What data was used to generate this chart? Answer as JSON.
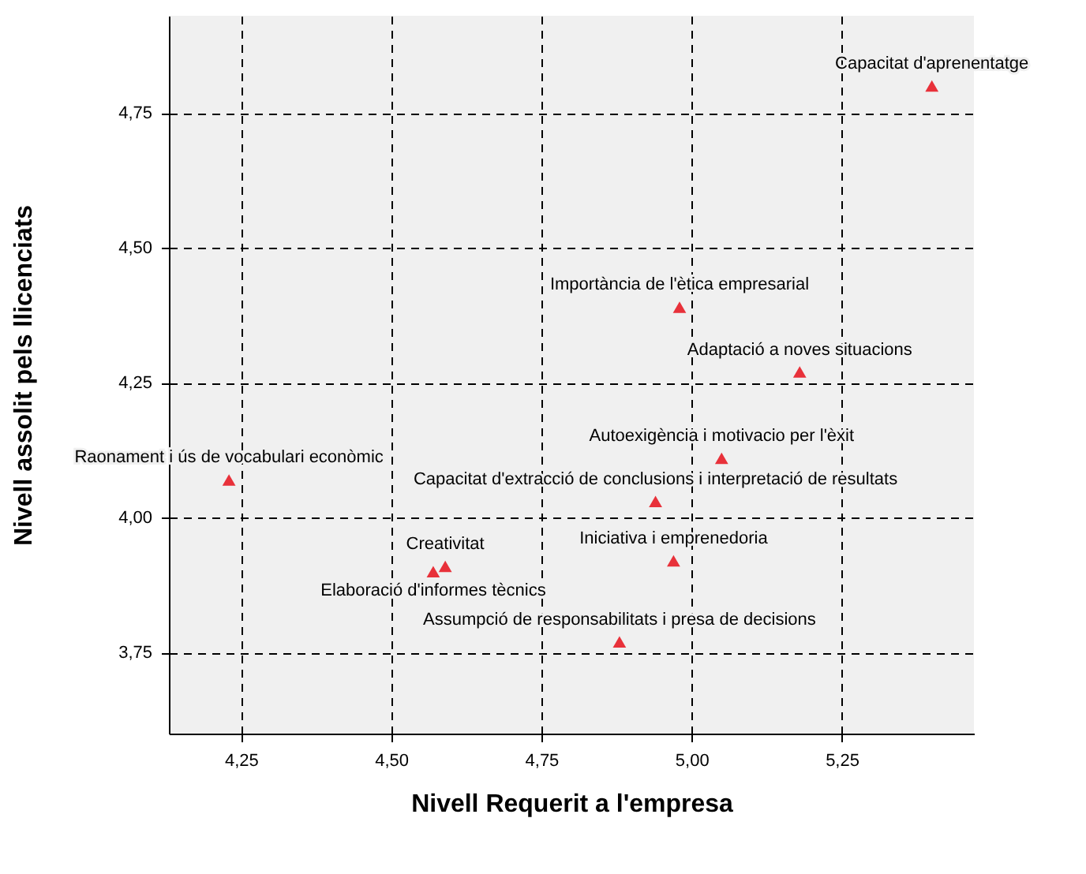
{
  "chart_data": {
    "type": "scatter",
    "xlabel": "Nivell Requerit a l'empresa",
    "ylabel": "Nivell assolit pels llicenciats",
    "x": [
      5.4,
      4.98,
      5.18,
      5.05,
      4.23,
      4.94,
      4.59,
      4.57,
      4.97,
      4.88
    ],
    "series": [
      {
        "color": "#e8313a",
        "values": [
          4.8,
          4.39,
          4.27,
          4.11,
          4.07,
          4.03,
          3.91,
          3.9,
          3.92,
          3.77
        ]
      }
    ],
    "xlim": [
      4.13,
      5.47
    ],
    "ylim": [
      3.6,
      4.93
    ],
    "xticks": [
      {
        "value": 4.25,
        "label": "4,25"
      },
      {
        "value": 4.5,
        "label": "4,50"
      },
      {
        "value": 4.75,
        "label": "4,75"
      },
      {
        "value": 5.0,
        "label": "5,00"
      },
      {
        "value": 5.25,
        "label": "5,25"
      }
    ],
    "yticks": [
      {
        "value": 3.75,
        "label": "3,75"
      },
      {
        "value": 4.0,
        "label": "4,00"
      },
      {
        "value": 4.25,
        "label": "4,25"
      },
      {
        "value": 4.5,
        "label": "4,50"
      },
      {
        "value": 4.75,
        "label": "4,75"
      }
    ],
    "grid": true,
    "marker": "triangle",
    "annotations": [
      {
        "text": "Capacitat d'aprenentatge",
        "x": 5.4,
        "y": 4.8
      },
      {
        "text": "Importància de l'ètica empresarial",
        "x": 4.98,
        "y": 4.39
      },
      {
        "text": "Adaptació a noves situacions",
        "x": 5.18,
        "y": 4.27
      },
      {
        "text": "Autoexigència i motivacio per l'èxit",
        "x": 5.05,
        "y": 4.11
      },
      {
        "text": "Raonament i ús de vocabulari econòmic",
        "x": 4.23,
        "y": 4.07
      },
      {
        "text": "Capacitat d'extracció de conclusions i interpretació de resultats",
        "x": 4.94,
        "y": 4.03
      },
      {
        "text": "Creativitat",
        "x": 4.59,
        "y": 3.91
      },
      {
        "text": "Elaboració d'informes tècnics",
        "x": 4.57,
        "y": 3.9
      },
      {
        "text": "Iniciativa i emprenedoria",
        "x": 4.97,
        "y": 3.92
      },
      {
        "text": "Assumpció de responsabilitats i presa de decisions",
        "x": 4.88,
        "y": 3.77
      }
    ]
  }
}
